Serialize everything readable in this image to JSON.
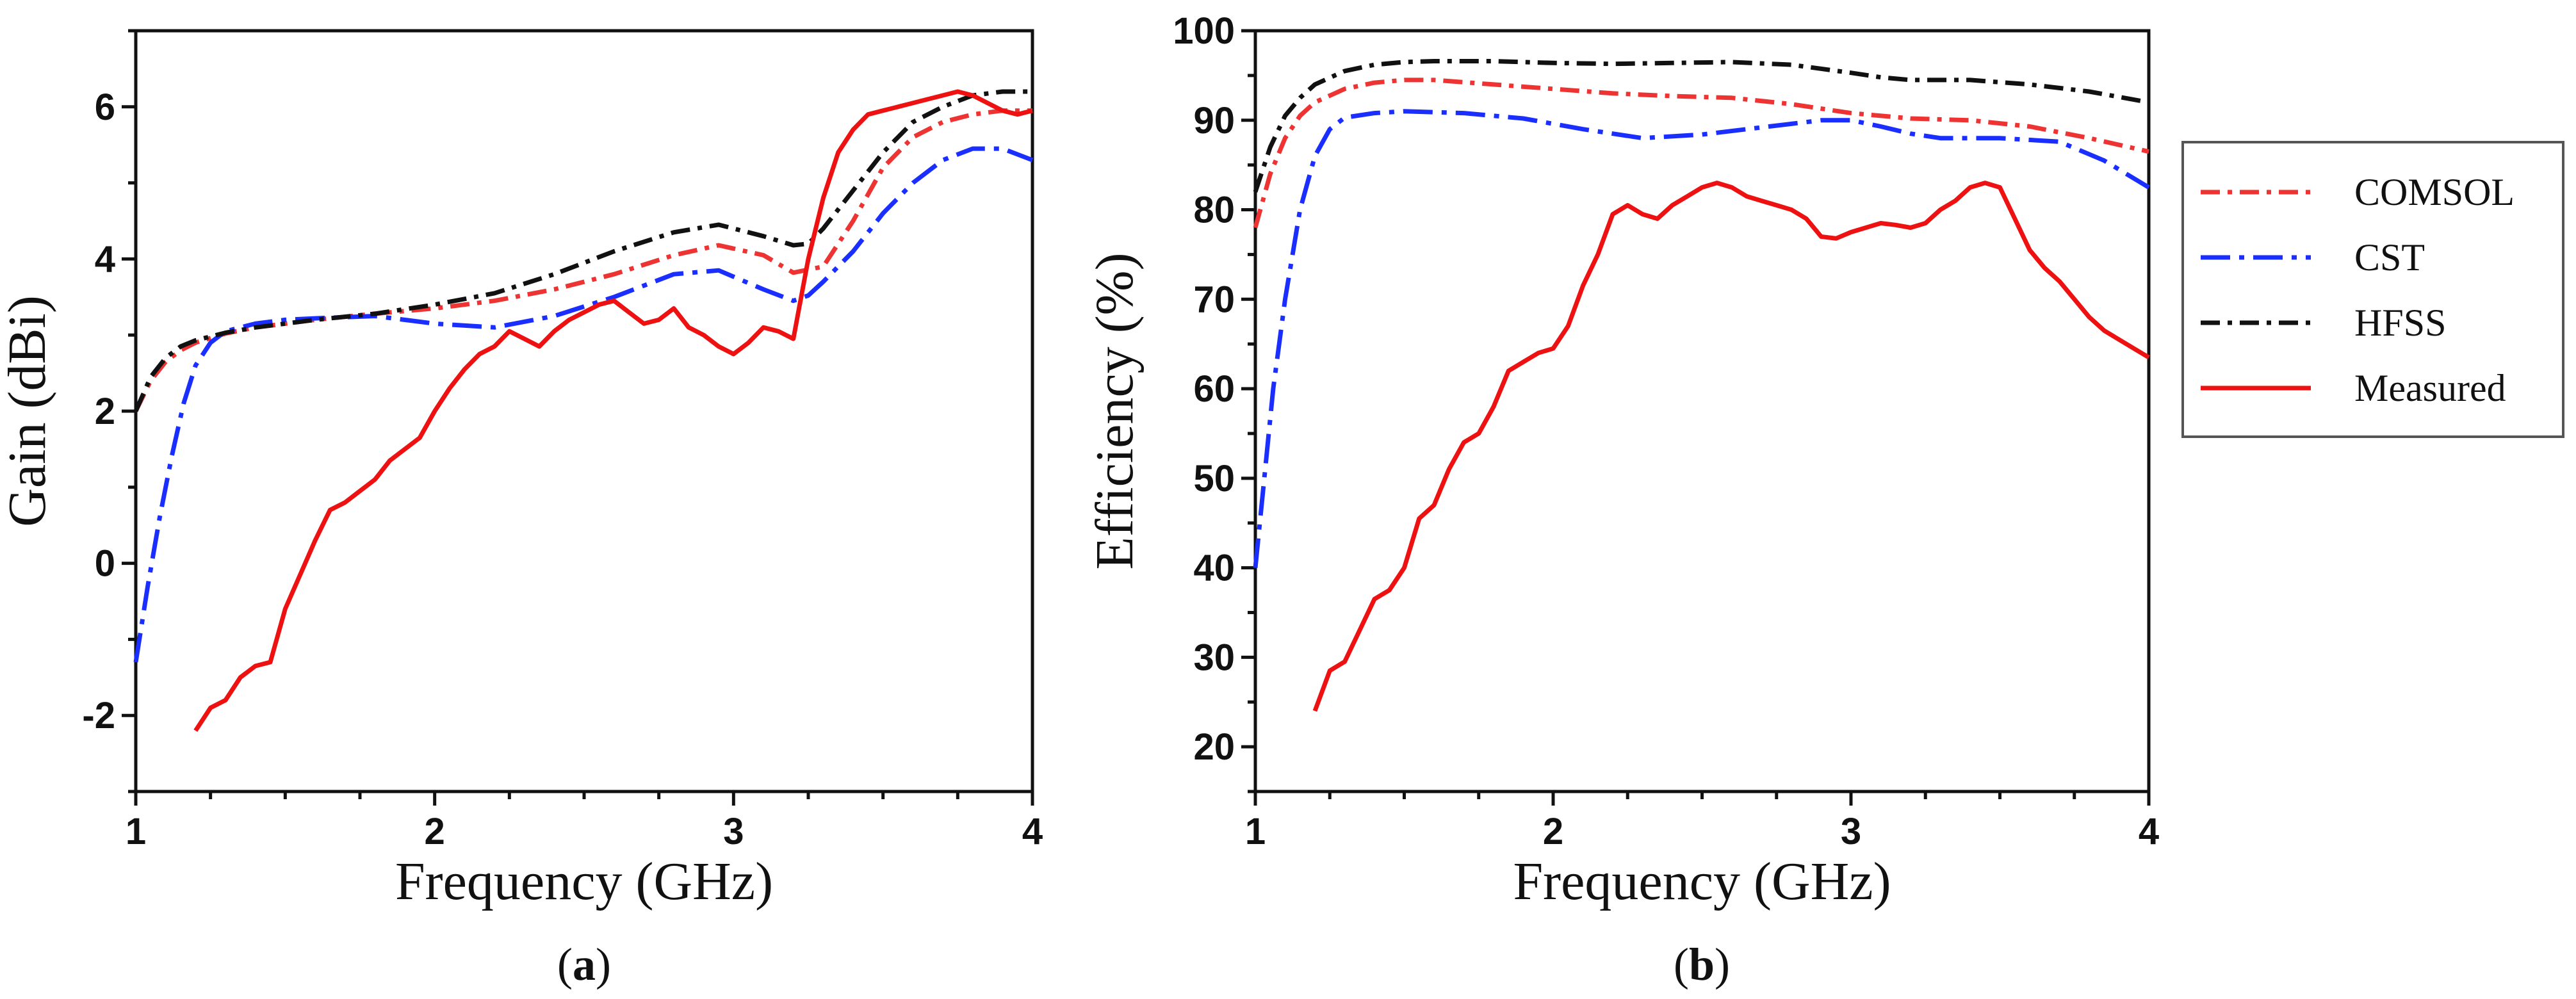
{
  "chart_data": [
    {
      "type": "line",
      "panel_label": "a",
      "xlabel": "Frequency (GHz)",
      "ylabel": "Gain (dBi)",
      "xlim": [
        1,
        4
      ],
      "ylim": [
        -3,
        7
      ],
      "xticks": [
        1,
        2,
        3,
        4
      ],
      "yticks": [
        -2,
        0,
        2,
        4,
        6
      ],
      "grid": false,
      "series": [
        {
          "name": "COMSOL",
          "color": "#ee3333",
          "dash": "dashdot",
          "x": [
            1.0,
            1.05,
            1.1,
            1.15,
            1.2,
            1.3,
            1.4,
            1.5,
            1.6,
            1.8,
            2.0,
            2.2,
            2.4,
            2.6,
            2.8,
            2.95,
            3.1,
            3.2,
            3.3,
            3.4,
            3.5,
            3.6,
            3.7,
            3.8,
            3.9,
            4.0
          ],
          "y": [
            2.0,
            2.4,
            2.65,
            2.8,
            2.9,
            3.02,
            3.1,
            3.15,
            3.2,
            3.28,
            3.35,
            3.45,
            3.6,
            3.8,
            4.05,
            4.18,
            4.05,
            3.82,
            3.9,
            4.5,
            5.2,
            5.6,
            5.8,
            5.9,
            5.95,
            5.95
          ]
        },
        {
          "name": "CST",
          "color": "#1a2fff",
          "dash": "longdashdot",
          "x": [
            1.0,
            1.04,
            1.08,
            1.12,
            1.16,
            1.2,
            1.25,
            1.3,
            1.4,
            1.5,
            1.6,
            1.8,
            2.0,
            2.2,
            2.4,
            2.6,
            2.8,
            2.95,
            3.1,
            3.2,
            3.25,
            3.3,
            3.4,
            3.5,
            3.6,
            3.7,
            3.8,
            3.9,
            4.0
          ],
          "y": [
            -1.3,
            -0.3,
            0.6,
            1.4,
            2.1,
            2.6,
            2.9,
            3.05,
            3.15,
            3.2,
            3.22,
            3.25,
            3.15,
            3.1,
            3.25,
            3.5,
            3.8,
            3.85,
            3.6,
            3.45,
            3.52,
            3.7,
            4.1,
            4.6,
            5.0,
            5.3,
            5.45,
            5.45,
            5.3
          ]
        },
        {
          "name": "HFSS",
          "color": "#111111",
          "dash": "dashdot",
          "x": [
            1.0,
            1.05,
            1.1,
            1.15,
            1.2,
            1.3,
            1.4,
            1.5,
            1.6,
            1.8,
            2.0,
            2.2,
            2.4,
            2.6,
            2.8,
            2.95,
            3.1,
            3.2,
            3.25,
            3.3,
            3.4,
            3.5,
            3.6,
            3.7,
            3.8,
            3.9,
            4.0
          ],
          "y": [
            2.0,
            2.45,
            2.7,
            2.85,
            2.93,
            3.03,
            3.1,
            3.15,
            3.2,
            3.28,
            3.4,
            3.55,
            3.8,
            4.1,
            4.35,
            4.45,
            4.3,
            4.18,
            4.2,
            4.4,
            4.9,
            5.4,
            5.8,
            6.0,
            6.15,
            6.2,
            6.2
          ]
        },
        {
          "name": "Measured",
          "color": "#ee1111",
          "dash": "solid",
          "x": [
            1.2,
            1.25,
            1.3,
            1.35,
            1.4,
            1.45,
            1.5,
            1.55,
            1.6,
            1.65,
            1.7,
            1.75,
            1.8,
            1.85,
            1.9,
            1.95,
            2.0,
            2.05,
            2.1,
            2.15,
            2.2,
            2.25,
            2.3,
            2.35,
            2.4,
            2.45,
            2.5,
            2.55,
            2.6,
            2.65,
            2.7,
            2.75,
            2.8,
            2.85,
            2.9,
            2.95,
            3.0,
            3.05,
            3.1,
            3.15,
            3.2,
            3.25,
            3.3,
            3.35,
            3.4,
            3.45,
            3.5,
            3.55,
            3.6,
            3.65,
            3.7,
            3.75,
            3.8,
            3.85,
            3.9,
            3.95,
            4.0
          ],
          "y": [
            -2.2,
            -1.9,
            -1.8,
            -1.5,
            -1.35,
            -1.3,
            -0.6,
            -0.15,
            0.3,
            0.7,
            0.8,
            0.95,
            1.1,
            1.35,
            1.5,
            1.65,
            2.0,
            2.3,
            2.55,
            2.75,
            2.85,
            3.05,
            2.95,
            2.85,
            3.05,
            3.2,
            3.3,
            3.4,
            3.45,
            3.3,
            3.15,
            3.2,
            3.35,
            3.1,
            3.0,
            2.85,
            2.75,
            2.9,
            3.1,
            3.05,
            2.95,
            4.0,
            4.8,
            5.4,
            5.7,
            5.9,
            5.95,
            6.0,
            6.05,
            6.1,
            6.15,
            6.2,
            6.15,
            6.05,
            5.95,
            5.9,
            5.95
          ]
        }
      ]
    },
    {
      "type": "line",
      "panel_label": "b",
      "xlabel": "Frequency (GHz)",
      "ylabel": "Efficiency (%)",
      "xlim": [
        1,
        4
      ],
      "ylim": [
        15,
        100
      ],
      "xticks": [
        1,
        2,
        3,
        4
      ],
      "yticks": [
        20,
        30,
        40,
        50,
        60,
        70,
        80,
        90,
        100
      ],
      "grid": false,
      "series": [
        {
          "name": "COMSOL",
          "color": "#ee3333",
          "dash": "dashdot",
          "x": [
            1.0,
            1.05,
            1.1,
            1.15,
            1.2,
            1.3,
            1.4,
            1.5,
            1.6,
            1.8,
            2.0,
            2.2,
            2.4,
            2.6,
            2.8,
            3.0,
            3.2,
            3.4,
            3.6,
            3.8,
            4.0
          ],
          "y": [
            78,
            84,
            88,
            90.5,
            92,
            93.5,
            94.2,
            94.5,
            94.5,
            94,
            93.5,
            93,
            92.7,
            92.5,
            91.8,
            90.8,
            90.2,
            90,
            89.3,
            88,
            86.5
          ]
        },
        {
          "name": "CST",
          "color": "#1a2fff",
          "dash": "longdashdot",
          "x": [
            1.0,
            1.03,
            1.06,
            1.1,
            1.15,
            1.2,
            1.25,
            1.3,
            1.4,
            1.5,
            1.7,
            1.9,
            2.1,
            2.3,
            2.5,
            2.7,
            2.9,
            3.0,
            3.1,
            3.2,
            3.3,
            3.5,
            3.7,
            3.85,
            4.0
          ],
          "y": [
            40,
            50,
            60,
            70,
            80,
            86,
            89,
            90.3,
            90.8,
            91,
            90.8,
            90.2,
            89,
            88,
            88.4,
            89.2,
            90,
            90,
            89.3,
            88.5,
            88,
            88,
            87.6,
            85.5,
            82.5
          ]
        },
        {
          "name": "HFSS",
          "color": "#111111",
          "dash": "dashdot",
          "x": [
            1.0,
            1.05,
            1.1,
            1.15,
            1.2,
            1.3,
            1.4,
            1.5,
            1.6,
            1.8,
            2.0,
            2.2,
            2.4,
            2.6,
            2.8,
            3.0,
            3.1,
            3.2,
            3.4,
            3.6,
            3.8,
            4.0
          ],
          "y": [
            82,
            87,
            90.5,
            92.5,
            94,
            95.5,
            96.2,
            96.5,
            96.6,
            96.6,
            96.4,
            96.3,
            96.4,
            96.5,
            96.2,
            95.3,
            94.8,
            94.5,
            94.5,
            94,
            93.2,
            92
          ]
        },
        {
          "name": "Measured",
          "color": "#ee1111",
          "dash": "solid",
          "x": [
            1.2,
            1.25,
            1.3,
            1.35,
            1.4,
            1.45,
            1.5,
            1.55,
            1.6,
            1.65,
            1.7,
            1.75,
            1.8,
            1.85,
            1.9,
            1.95,
            2.0,
            2.05,
            2.1,
            2.15,
            2.2,
            2.25,
            2.3,
            2.35,
            2.4,
            2.45,
            2.5,
            2.55,
            2.6,
            2.65,
            2.7,
            2.75,
            2.8,
            2.85,
            2.9,
            2.95,
            3.0,
            3.05,
            3.1,
            3.15,
            3.2,
            3.25,
            3.3,
            3.35,
            3.4,
            3.45,
            3.5,
            3.55,
            3.6,
            3.65,
            3.7,
            3.75,
            3.8,
            3.85,
            3.9,
            3.95,
            4.0
          ],
          "y": [
            24,
            28.5,
            29.5,
            33,
            36.5,
            37.5,
            40,
            45.5,
            47,
            51,
            54,
            55,
            58,
            62,
            63,
            64,
            64.5,
            67,
            71.5,
            75,
            79.5,
            80.5,
            79.5,
            79,
            80.5,
            81.5,
            82.5,
            83,
            82.5,
            81.5,
            81,
            80.5,
            80,
            79,
            77,
            76.8,
            77.5,
            78,
            78.5,
            78.3,
            78,
            78.5,
            80,
            81,
            82.5,
            83,
            82.5,
            79,
            75.5,
            73.5,
            72,
            70,
            68,
            66.5,
            65.5,
            64.5,
            63.5
          ]
        }
      ],
      "legend": {
        "position": "right"
      }
    }
  ]
}
